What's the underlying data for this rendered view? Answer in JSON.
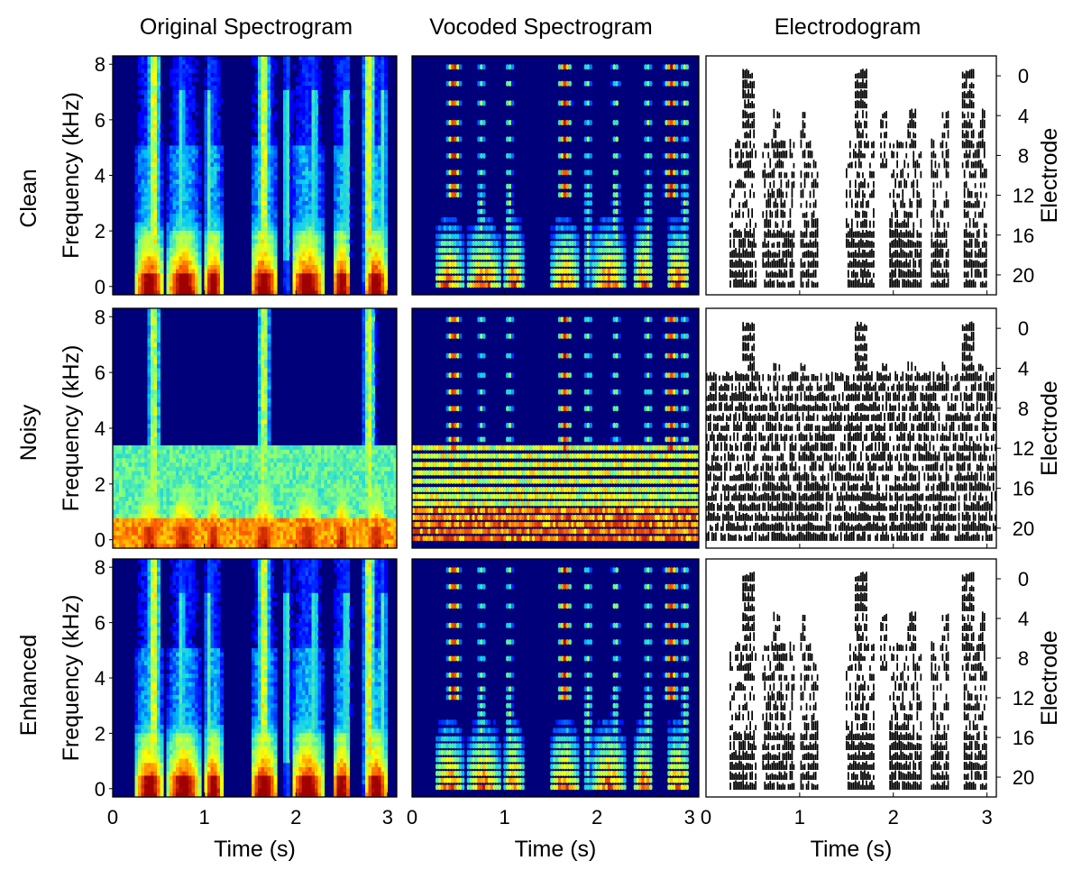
{
  "figure": {
    "column_titles": [
      "Original Spectrogram",
      "Vocoded Spectrogram",
      "Electrodogram"
    ],
    "row_labels": [
      "Clean",
      "Noisy",
      "Enhanced"
    ]
  },
  "chart_data": [
    {
      "type": "heatmap",
      "column": "Original Spectrogram",
      "rows": [
        "Clean",
        "Noisy",
        "Enhanced"
      ],
      "xlabel": "Time (s)",
      "ylabel": "Frequency (kHz)",
      "xlim": [
        0,
        3.1
      ],
      "ylim": [
        -0.3,
        8.3
      ],
      "x_ticks": [
        0,
        1,
        2,
        3
      ],
      "y_ticks": [
        0,
        2,
        4,
        6,
        8
      ],
      "colormap": [
        "#000080",
        "#0000ff",
        "#00c8ff",
        "#80ff80",
        "#ffff00",
        "#ff6000",
        "#a00000"
      ],
      "speech_segments_s": [
        [
          0.25,
          0.55
        ],
        [
          0.6,
          0.95
        ],
        [
          1.0,
          1.2
        ],
        [
          1.5,
          1.8
        ],
        [
          1.95,
          2.3
        ],
        [
          2.4,
          2.6
        ],
        [
          2.75,
          3.0
        ]
      ],
      "high_frequency_bursts_s": [
        0.45,
        1.65,
        2.8
      ],
      "noisy_broadband_band_khz": [
        0,
        3.4
      ]
    },
    {
      "type": "heatmap",
      "column": "Vocoded Spectrogram",
      "rows": [
        "Clean",
        "Noisy",
        "Enhanced"
      ],
      "xlabel": "Time (s)",
      "xlim": [
        0,
        3.1
      ],
      "ylim": [
        -0.3,
        8.3
      ],
      "x_ticks": [
        0,
        1,
        2,
        3
      ],
      "colormap": [
        "#000080",
        "#0000ff",
        "#00c8ff",
        "#80ff80",
        "#ffff00",
        "#ff6000",
        "#a00000"
      ],
      "channel_centre_khz": [
        0.05,
        0.3,
        0.55,
        0.8,
        1.05,
        1.3,
        1.55,
        1.8,
        2.1,
        2.4,
        2.7,
        3.0,
        3.3,
        3.6,
        4.1,
        4.7,
        5.3,
        5.9,
        6.6,
        7.3,
        7.9
      ]
    },
    {
      "type": "heatmap",
      "column": "Electrodogram",
      "rows": [
        "Clean",
        "Noisy",
        "Enhanced"
      ],
      "xlabel": "Time (s)",
      "ylabel": "Electrode",
      "xlim": [
        0,
        3.1
      ],
      "ylim": [
        22,
        -2
      ],
      "x_ticks": [
        0,
        1,
        2,
        3
      ],
      "y_ticks": [
        0,
        4,
        8,
        12,
        16,
        20
      ],
      "colormap": [
        "#ffffff",
        "#000000"
      ],
      "electrodes": [
        0,
        1,
        2,
        3,
        4,
        5,
        6,
        7,
        8,
        9,
        10,
        11,
        12,
        13,
        14,
        15,
        16,
        17,
        18,
        19,
        20,
        21
      ]
    }
  ]
}
